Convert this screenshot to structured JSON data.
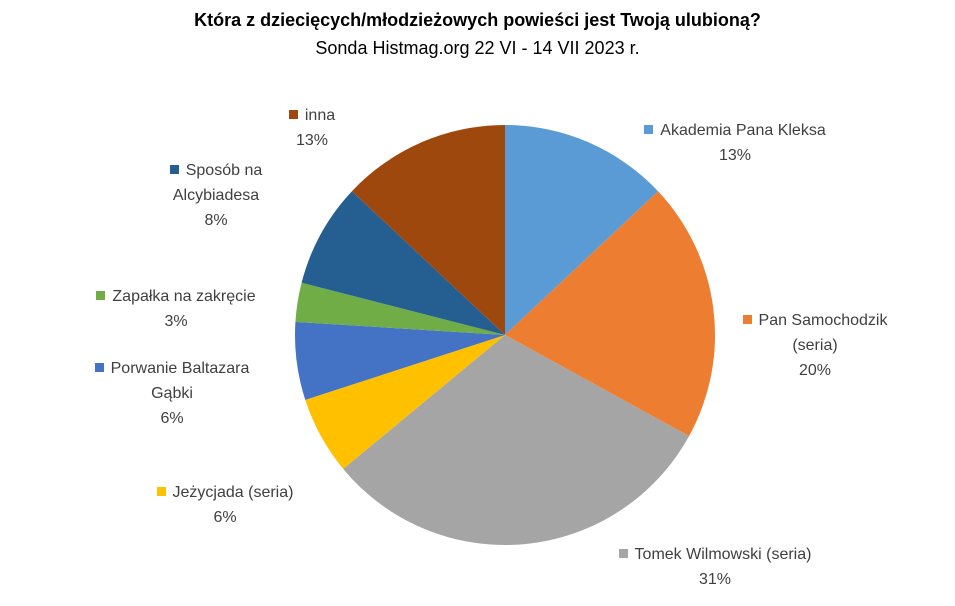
{
  "chart_data": {
    "type": "pie",
    "title": "Która z dziecięcych/młodzieżowych powieści jest Twoją ulubioną?",
    "subtitle": "Sonda Histmag.org 22 VI - 14 VII 2023 r.",
    "categories": [
      "Akademia Pana Kleksa",
      "Pan Samochodzik (seria)",
      "Tomek Wilmowski (seria)",
      "Jeżycjada (seria)",
      "Porwanie Baltazara Gąbki",
      "Zapałka na zakręcie",
      "Sposób na Alcybiadesa",
      "inna"
    ],
    "values": [
      13,
      20,
      31,
      6,
      6,
      3,
      8,
      13
    ],
    "value_labels": [
      "13%",
      "20%",
      "31%",
      "6%",
      "6%",
      "3%",
      "8%",
      "13%"
    ],
    "colors": [
      "#5b9bd5",
      "#ed7d31",
      "#a5a5a5",
      "#ffc000",
      "#4472c4",
      "#70ad47",
      "#255e91",
      "#9e480e"
    ]
  }
}
